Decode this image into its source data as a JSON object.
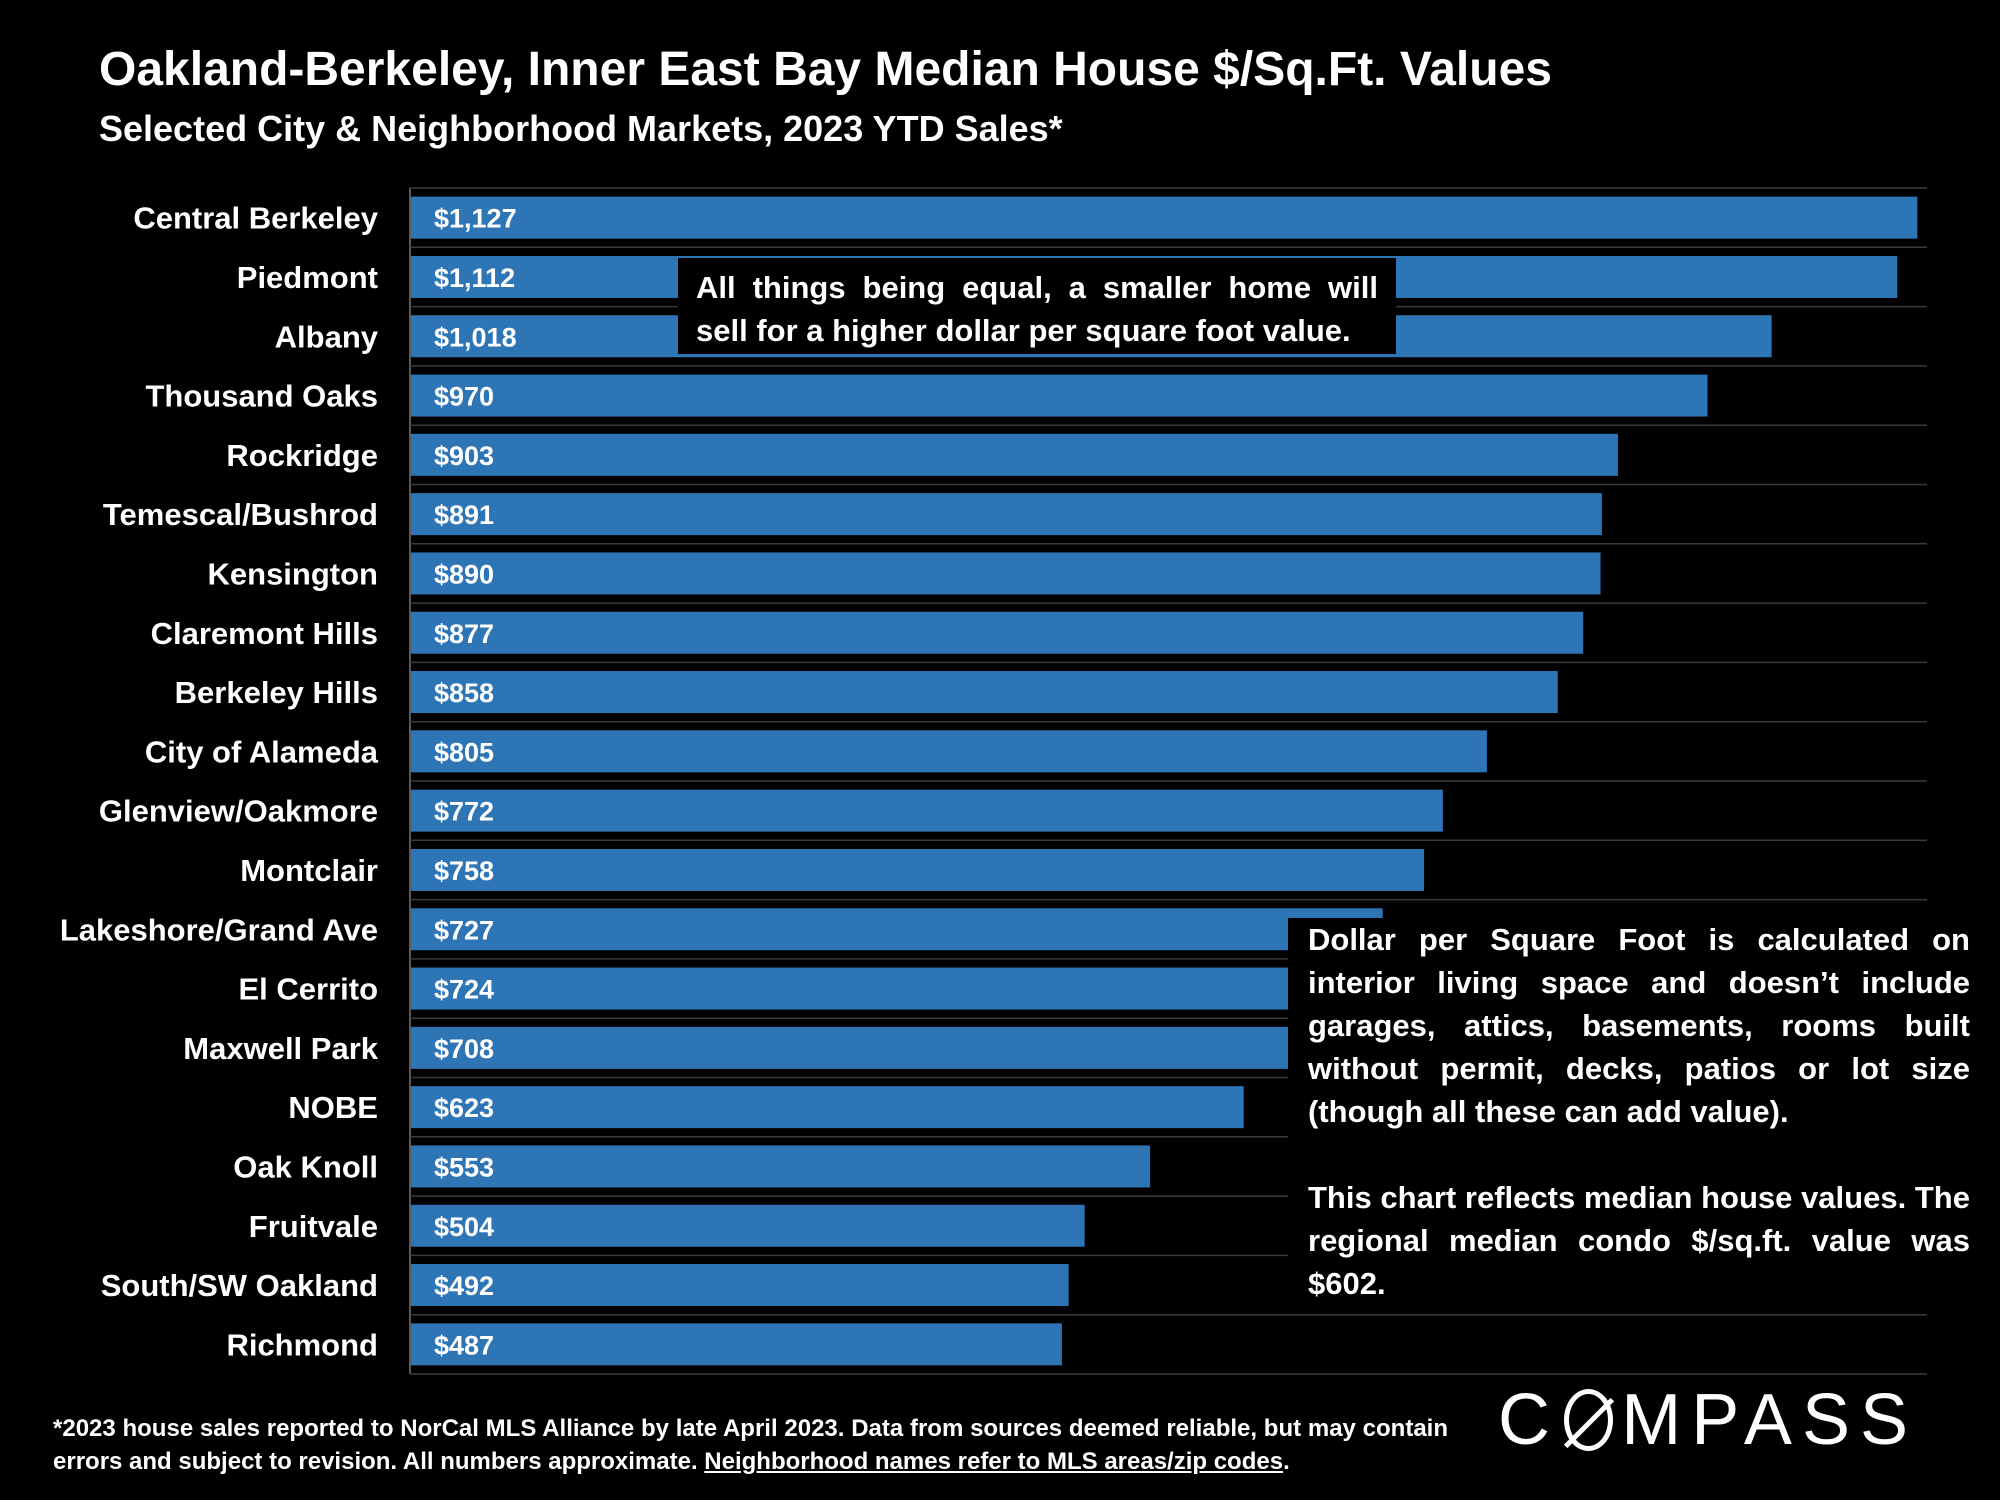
{
  "title": "Oakland-Berkeley, Inner East Bay Median House $/Sq.Ft. Values",
  "subtitle": "Selected City & Neighborhood Markets, 2023 YTD Sales*",
  "chart_data": {
    "type": "bar",
    "orientation": "horizontal",
    "title": "Oakland-Berkeley, Inner East Bay Median House $/Sq.Ft. Values",
    "subtitle": "Selected City & Neighborhood Markets, 2023 YTD Sales*",
    "categories": [
      "Central Berkeley",
      "Piedmont",
      "Albany",
      "Thousand Oaks",
      "Rockridge",
      "Temescal/Bushrod",
      "Kensington",
      "Claremont Hills",
      "Berkeley Hills",
      "City of Alameda",
      "Glenview/Oakmore",
      "Montclair",
      "Lakeshore/Grand Ave",
      "El Cerrito",
      "Maxwell Park",
      "NOBE",
      "Oak Knoll",
      "Fruitvale",
      "South/SW Oakland",
      "Richmond"
    ],
    "values": [
      1127,
      1112,
      1018,
      970,
      903,
      891,
      890,
      877,
      858,
      805,
      772,
      758,
      727,
      724,
      708,
      623,
      553,
      504,
      492,
      487
    ],
    "value_labels": [
      "$1,127",
      "$1,112",
      "$1,018",
      "$970",
      "$903",
      "$891",
      "$890",
      "$877",
      "$858",
      "$805",
      "$772",
      "$758",
      "$727",
      "$724",
      "$708",
      "$623",
      "$553",
      "$504",
      "$492",
      "$487"
    ],
    "xlim": [
      0,
      1135
    ],
    "grid": "horizontal separators",
    "bar_color": "#2E75B6"
  },
  "annotations": {
    "note_1": "All things being equal, a smaller home will sell for a higher dollar per square foot value.",
    "note_2_p1": "Dollar per Square Foot is calculated on interior living space and doesn’t include garages, attics, basements, rooms built without permit, decks, patios or lot size (though all these can add value).",
    "note_2_p2": "This chart reflects median house values. The regional median condo $/sq.ft. value was $602."
  },
  "footnote": {
    "text": "*2023 house sales reported to NorCal MLS Alliance by late April 2023. Data from sources deemed reliable, but may contain errors and subject to revision. All numbers approximate. ",
    "underlined": "Neighborhood names refer to MLS areas/zip codes",
    "end": "."
  },
  "logo": {
    "prefix": "C",
    "suffix": "MPASS"
  }
}
